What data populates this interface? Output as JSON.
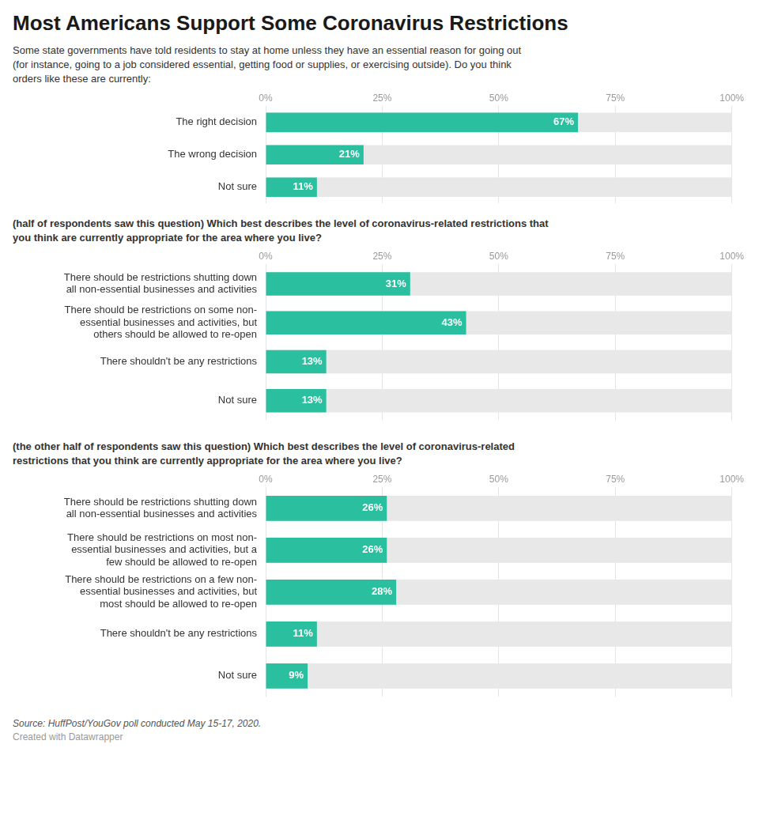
{
  "chart_data": [
    {
      "type": "bar",
      "orientation": "horizontal",
      "title": "Most Americans Support Some Coronavirus Restrictions",
      "subtitle": "Some state governments have told residents to stay at home unless they have an essential reason for going out\n(for instance, going to a job considered essential, getting food or supplies, or exercising outside). Do you think\norders like these are currently:",
      "categories": [
        "The right decision",
        "The wrong decision",
        "Not sure"
      ],
      "values": [
        67,
        21,
        11
      ],
      "value_labels": [
        "67%",
        "21%",
        "11%"
      ],
      "data_labels": true,
      "color": "#2abf9e",
      "xlim": [
        0,
        100
      ],
      "xticks": [
        {
          "value": 0,
          "label": "0%"
        },
        {
          "value": 25,
          "label": "25%"
        },
        {
          "value": 50,
          "label": "50%"
        },
        {
          "value": 75,
          "label": "75%"
        },
        {
          "value": 100,
          "label": "100%"
        }
      ],
      "grid": true
    },
    {
      "type": "bar",
      "orientation": "horizontal",
      "subtitle": "(half of respondents saw this question) Which best describes the level of coronavirus-related restrictions that\nyou think are currently appropriate for the area where you live?",
      "categories": [
        "There should be restrictions shutting down\nall non-essential businesses and activities",
        "There should be restrictions on some non-\nessential businesses and activities, but\nothers should be allowed to re-open",
        "There shouldn't be any restrictions",
        "Not sure"
      ],
      "values": [
        31,
        43,
        13,
        13
      ],
      "value_labels": [
        "31%",
        "43%",
        "13%",
        "13%"
      ],
      "data_labels": true,
      "color": "#2abf9e",
      "xlim": [
        0,
        100
      ],
      "xticks": [
        {
          "value": 0,
          "label": "0%"
        },
        {
          "value": 25,
          "label": "25%"
        },
        {
          "value": 50,
          "label": "50%"
        },
        {
          "value": 75,
          "label": "75%"
        },
        {
          "value": 100,
          "label": "100%"
        }
      ],
      "grid": true
    },
    {
      "type": "bar",
      "orientation": "horizontal",
      "subtitle": "(the other half of respondents saw this question) Which best describes the level of coronavirus-related\nrestrictions that you think are currently appropriate for the area where you live?",
      "categories": [
        "There should be restrictions shutting down\nall non-essential businesses and activities",
        "There should be restrictions on most non-\nessential businesses and activities, but a\nfew should be allowed to re-open",
        "There should be restrictions on a few non-\nessential businesses and activities, but\nmost should be allowed to re-open",
        "There shouldn't be any restrictions",
        "Not sure"
      ],
      "values": [
        26,
        26,
        28,
        11,
        9
      ],
      "value_labels": [
        "26%",
        "26%",
        "28%",
        "11%",
        "9%"
      ],
      "data_labels": true,
      "color": "#2abf9e",
      "xlim": [
        0,
        100
      ],
      "xticks": [
        {
          "value": 0,
          "label": "0%"
        },
        {
          "value": 25,
          "label": "25%"
        },
        {
          "value": 50,
          "label": "50%"
        },
        {
          "value": 75,
          "label": "75%"
        },
        {
          "value": 100,
          "label": "100%"
        }
      ],
      "grid": true,
      "annotations": [
        "Source: HuffPost/YouGov poll conducted May 15-17, 2020.",
        "Created with Datawrapper"
      ]
    }
  ]
}
